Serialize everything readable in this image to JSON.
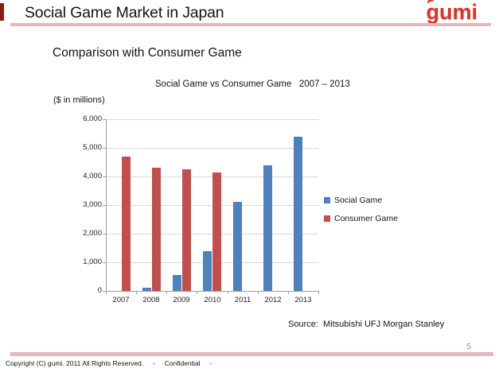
{
  "slide": {
    "title": "Social Game Market in Japan",
    "brand": "gumi",
    "subtitle": "Comparison with Consumer Game",
    "source": "Source:  Mitsubishi UFJ Morgan Stanley",
    "page_number": "5",
    "footer": "Copyright (C) gumi. 2011 All Rights Reserved.     -     Confidential     -"
  },
  "chart_data": {
    "type": "bar",
    "title": "Social Game vs Consumer Game   2007 – 2013",
    "units_label": "($ in millions)",
    "categories": [
      "2007",
      "2008",
      "2009",
      "2010",
      "2011",
      "2012",
      "2013"
    ],
    "series": [
      {
        "name": "Social Game",
        "color": "#4F81BD",
        "values": [
          0,
          100,
          550,
          1400,
          3100,
          4400,
          5400
        ]
      },
      {
        "name": "Consumer Game",
        "color": "#C0504D",
        "values": [
          4700,
          4300,
          4250,
          4150,
          null,
          null,
          null
        ]
      }
    ],
    "ylim": [
      0,
      6000
    ],
    "ytick_step": 1000,
    "ytick_labels": [
      "0",
      "1,000",
      "2,000",
      "3,000",
      "4,000",
      "5,000",
      "6,000"
    ],
    "grid": true,
    "legend_position": "right"
  },
  "colors": {
    "rule_pink": "#E5B8BB",
    "accent_dark_red": "#8B1A10",
    "axis_gray": "#9E9E9E",
    "grid_gray": "#D9D9D9",
    "social_blue": "#4F81BD",
    "consumer_red": "#C0504D"
  }
}
